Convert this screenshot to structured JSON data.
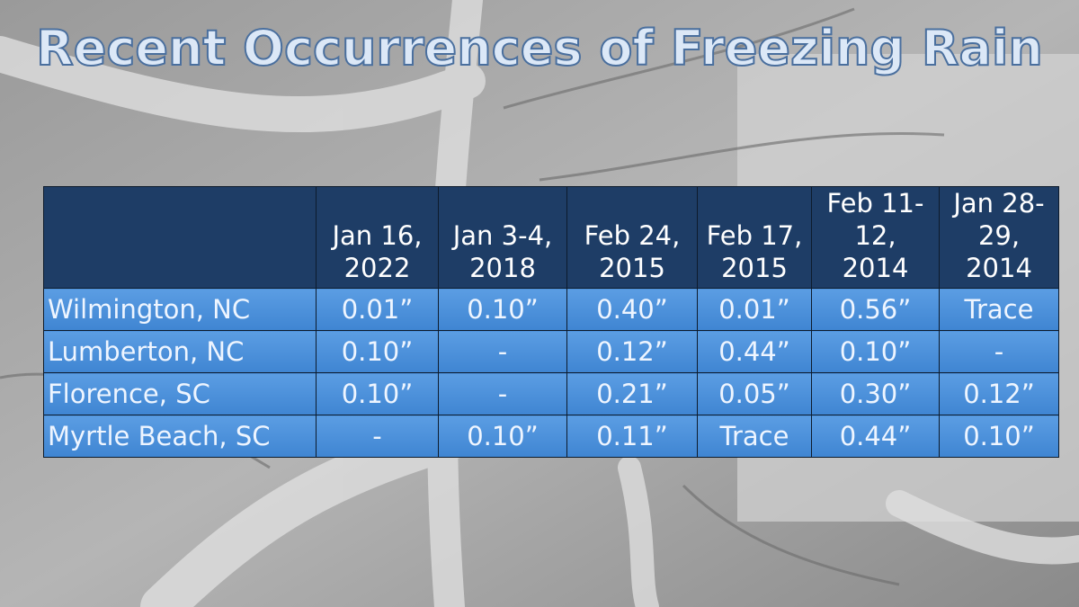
{
  "title": "Recent Occurrences of Freezing Rain",
  "table": {
    "columns": [
      "Jan 16, 2022",
      "Jan 3-4, 2018",
      "Feb 24, 2015",
      "Feb 17, 2015",
      "Feb 11-12, 2014",
      "Jan 28-29, 2014"
    ],
    "rows": [
      {
        "label": "Wilmington, NC",
        "cells": [
          "0.01”",
          "0.10”",
          "0.40”",
          "0.01”",
          "0.56”",
          "Trace"
        ]
      },
      {
        "label": "Lumberton, NC",
        "cells": [
          "0.10”",
          "-",
          "0.12”",
          "0.44”",
          "0.10”",
          "-"
        ]
      },
      {
        "label": "Florence, SC",
        "cells": [
          "0.10”",
          "-",
          "0.21”",
          "0.05”",
          "0.30”",
          "0.12”"
        ]
      },
      {
        "label": "Myrtle Beach, SC",
        "cells": [
          "-",
          "0.10”",
          "0.11”",
          "Trace",
          "0.44”",
          "0.10”"
        ]
      }
    ]
  }
}
